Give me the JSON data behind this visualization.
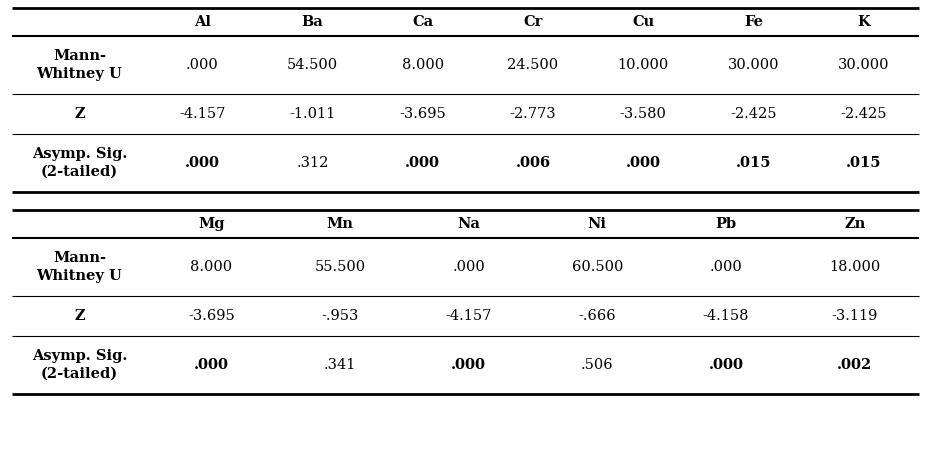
{
  "table1": {
    "col_headers": [
      "",
      "Al",
      "Ba",
      "Ca",
      "Cr",
      "Cu",
      "Fe",
      "K"
    ],
    "rows": [
      {
        "label": "Mann-\nWhitney U",
        "values": [
          ".000",
          "54.500",
          "8.000",
          "24.500",
          "10.000",
          "30.000",
          "30.000"
        ],
        "bold_values": [
          false,
          false,
          false,
          false,
          false,
          false,
          false
        ]
      },
      {
        "label": "Z",
        "values": [
          "-4.157",
          "-1.011",
          "-3.695",
          "-2.773",
          "-3.580",
          "-2.425",
          "-2.425"
        ],
        "bold_values": [
          false,
          false,
          false,
          false,
          false,
          false,
          false
        ]
      },
      {
        "label": "Asymp. Sig.\n(2-tailed)",
        "values": [
          ".000",
          ".312",
          ".000",
          ".006",
          ".000",
          ".015",
          ".015"
        ],
        "bold_values": [
          true,
          false,
          true,
          true,
          true,
          true,
          true
        ]
      }
    ]
  },
  "table2": {
    "col_headers": [
      "",
      "Mg",
      "Mn",
      "Na",
      "Ni",
      "Pb",
      "Zn"
    ],
    "rows": [
      {
        "label": "Mann-\nWhitney U",
        "values": [
          "8.000",
          "55.500",
          ".000",
          "60.500",
          ".000",
          "18.000"
        ],
        "bold_values": [
          false,
          false,
          false,
          false,
          false,
          false
        ]
      },
      {
        "label": "Z",
        "values": [
          "-3.695",
          "-.953",
          "-4.157",
          "-.666",
          "-4.158",
          "-3.119"
        ],
        "bold_values": [
          false,
          false,
          false,
          false,
          false,
          false
        ]
      },
      {
        "label": "Asymp. Sig.\n(2-tailed)",
        "values": [
          ".000",
          ".341",
          ".000",
          ".506",
          ".000",
          ".002"
        ],
        "bold_values": [
          true,
          false,
          true,
          false,
          true,
          true
        ]
      }
    ]
  },
  "background_color": "#ffffff",
  "text_color": "#000000",
  "fontsize": 10.5,
  "fig_width": 9.31,
  "fig_height": 4.69,
  "dpi": 100
}
